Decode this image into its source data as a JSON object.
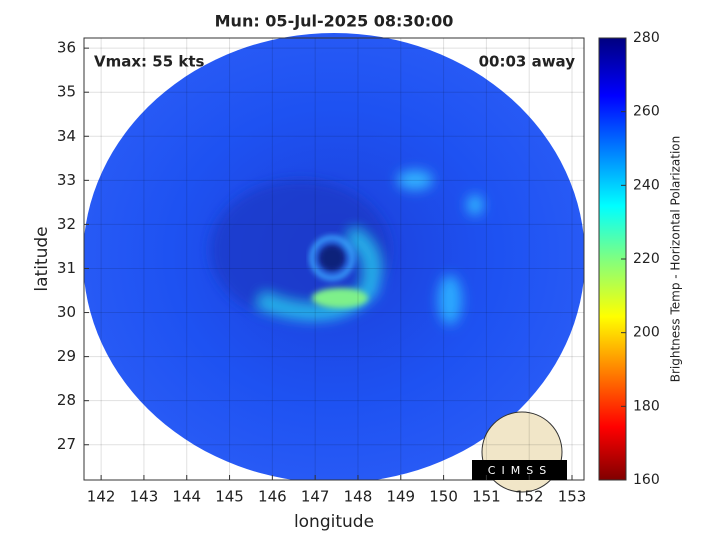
{
  "chart_data": {
    "type": "image",
    "title": "Mun: 05-Jul-2025 08:30:00",
    "x_label": "longitude",
    "y_label": "latitude",
    "annotations": [
      "Vmax: 55 kts",
      "00:03 away"
    ],
    "logo": "CIMSS",
    "xlim": [
      141.6,
      153.28
    ],
    "xticks": [
      142,
      143,
      144,
      145,
      146,
      147,
      148,
      149,
      150,
      151,
      152,
      153
    ],
    "ylim": [
      26.2,
      36.23
    ],
    "yticks": [
      27,
      28,
      29,
      30,
      31,
      32,
      33,
      34,
      35,
      36
    ],
    "grid": true,
    "colorbar": {
      "label": "Brightness Temp - Horizontal Polarization",
      "lim": [
        160,
        280
      ],
      "ticks": [
        160,
        180,
        200,
        220,
        240,
        260,
        280
      ]
    }
  }
}
